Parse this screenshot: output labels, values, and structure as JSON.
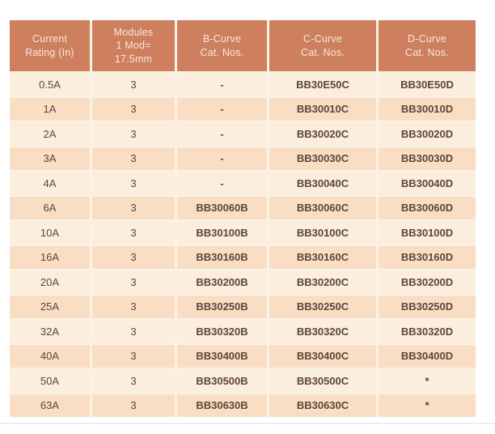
{
  "table": {
    "columns": [
      {
        "id": "current_rating",
        "label": "Current\nRating (In)"
      },
      {
        "id": "modules",
        "label": "Modules\n1 Mod=\n17.5mm"
      },
      {
        "id": "b_curve",
        "label": "B-Curve\nCat. Nos."
      },
      {
        "id": "c_curve",
        "label": "C-Curve\nCat. Nos."
      },
      {
        "id": "d_curve",
        "label": "D-Curve\nCat. Nos."
      }
    ],
    "rows": [
      [
        "0.5A",
        "3",
        "-",
        "BB30E50C",
        "BB30E50D"
      ],
      [
        "1A",
        "3",
        "-",
        "BB30010C",
        "BB30010D"
      ],
      [
        "2A",
        "3",
        "-",
        "BB30020C",
        "BB30020D"
      ],
      [
        "3A",
        "3",
        "-",
        "BB30030C",
        "BB30030D"
      ],
      [
        "4A",
        "3",
        "-",
        "BB30040C",
        "BB30040D"
      ],
      [
        "6A",
        "3",
        "BB30060B",
        "BB30060C",
        "BB30060D"
      ],
      [
        "10A",
        "3",
        "BB30100B",
        "BB30100C",
        "BB30100D"
      ],
      [
        "16A",
        "3",
        "BB30160B",
        "BB30160C",
        "BB30160D"
      ],
      [
        "20A",
        "3",
        "BB30200B",
        "BB30200C",
        "BB30200D"
      ],
      [
        "25A",
        "3",
        "BB30250B",
        "BB30250C",
        "BB30250D"
      ],
      [
        "32A",
        "3",
        "BB30320B",
        "BB30320C",
        "BB30320D"
      ],
      [
        "40A",
        "3",
        "BB30400B",
        "BB30400C",
        "BB30400D"
      ],
      [
        "50A",
        "3",
        "BB30500B",
        "BB30500C",
        "*"
      ],
      [
        "63A",
        "3",
        "BB30630B",
        "BB30630C",
        "*"
      ]
    ],
    "colors": {
      "header_bg": "#cd7f5e",
      "header_text": "#f7e8dc",
      "row_light": "#fbeedf",
      "row_dark": "#fadec4",
      "separator": "#fbf2e6",
      "body_text": "#5d4639",
      "bottom_divider": "#e9eef4"
    }
  }
}
